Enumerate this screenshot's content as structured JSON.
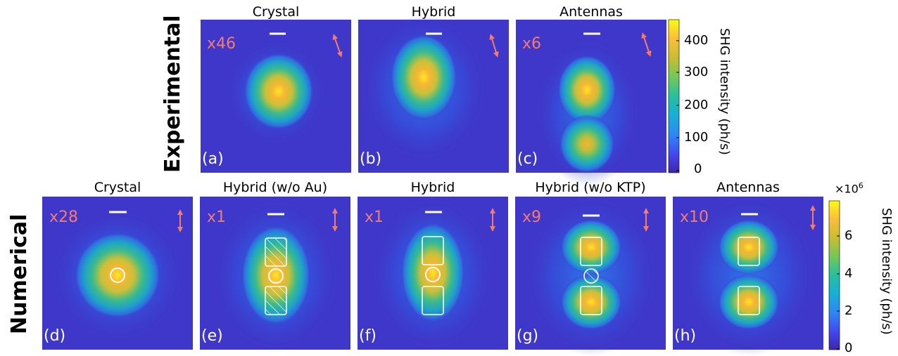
{
  "rows": {
    "experimental_label": "Experimental",
    "numerical_label": "Numerical"
  },
  "panels": [
    {
      "id": "a",
      "label": "(a)",
      "title": "Crystal",
      "factor": "x46"
    },
    {
      "id": "b",
      "label": "(b)",
      "title": "Hybrid",
      "factor": ""
    },
    {
      "id": "c",
      "label": "(c)",
      "title": "Antennas",
      "factor": "x6"
    },
    {
      "id": "d",
      "label": "(d)",
      "title": "Crystal",
      "factor": "x28"
    },
    {
      "id": "e",
      "label": "(e)",
      "title": "Hybrid (w/o Au)",
      "factor": "x1"
    },
    {
      "id": "f",
      "label": "(f)",
      "title": "Hybrid",
      "factor": "x1"
    },
    {
      "id": "g",
      "label": "(g)",
      "title": "Hybrid (w/o KTP)",
      "factor": "x9"
    },
    {
      "id": "h",
      "label": "(h)",
      "title": "Antennas",
      "factor": "x10"
    }
  ],
  "colorbars": {
    "experimental": {
      "label": "SHG intensity (ph/s)",
      "ticks": [
        "400",
        "300",
        "200",
        "100",
        "0"
      ],
      "range": [
        0,
        460
      ]
    },
    "numerical": {
      "label": "SHG intensity (ph/s)",
      "multiplier_base": "×10",
      "multiplier_exp": "6",
      "ticks": [
        "6",
        "4",
        "2",
        "0"
      ],
      "range": [
        0,
        7.8
      ]
    }
  },
  "colors": {
    "map_background": "#3f37c9",
    "annotation": "#f47c6e",
    "outline": "#ffffff"
  }
}
